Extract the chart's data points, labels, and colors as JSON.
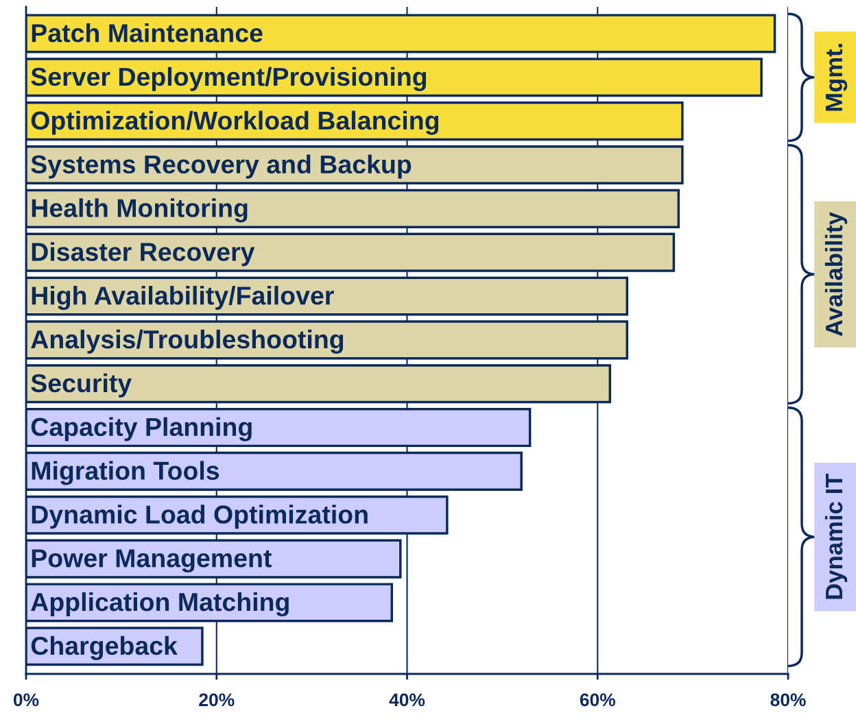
{
  "chart_data": {
    "type": "bar",
    "orientation": "horizontal",
    "categories": [
      "Patch Maintenance",
      "Server Deployment/Provisioning",
      "Optimization/Workload Balancing",
      "Systems Recovery and Backup",
      "Health Monitoring",
      "Disaster Recovery",
      "High Availability/Failover",
      "Analysis/Troubleshooting",
      "Security",
      "Capacity Planning",
      "Migration Tools",
      "Dynamic Load Optimization",
      "Power Management",
      "Application Matching",
      "Chargeback"
    ],
    "values": [
      78.6,
      77.2,
      68.9,
      68.9,
      68.5,
      68.0,
      63.1,
      63.1,
      61.3,
      52.9,
      52.0,
      44.2,
      39.3,
      38.4,
      18.5
    ],
    "colors": [
      "#f7de3a",
      "#f7de3a",
      "#f7de3a",
      "#ddd6a8",
      "#ddd6a8",
      "#ddd6a8",
      "#ddd6a8",
      "#ddd6a8",
      "#ddd6a8",
      "#ccccff",
      "#ccccff",
      "#ccccff",
      "#ccccff",
      "#ccccff",
      "#ccccff"
    ],
    "xlim": [
      0,
      80
    ],
    "xticks": [
      {
        "value": 0,
        "label": "0%"
      },
      {
        "value": 20,
        "label": "20%"
      },
      {
        "value": 40,
        "label": "40%"
      },
      {
        "value": 60,
        "label": "60%"
      },
      {
        "value": 80,
        "label": "80%"
      }
    ],
    "grid": "x",
    "annotations": [
      "Mgmt.",
      "Availability",
      "Dynamic IT"
    ]
  }
}
